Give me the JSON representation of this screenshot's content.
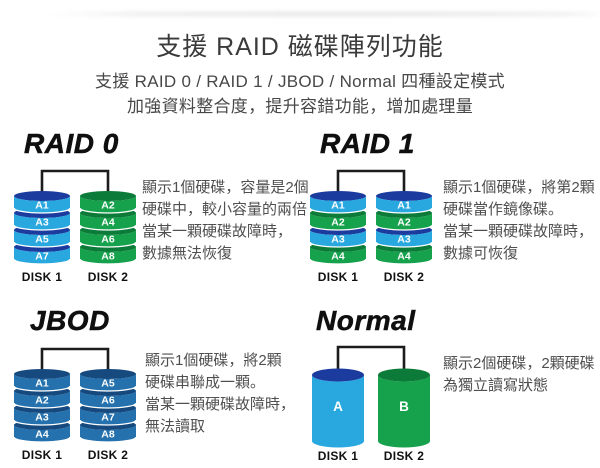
{
  "header": {
    "title": "支援 RAID 磁碟陣列功能",
    "subtitle1": "支援 RAID 0 / RAID 1 / JBOD / Normal 四種設定模式",
    "subtitle2": "加強資料整合度，提升容錯功能，增加處理量"
  },
  "colors": {
    "cyan": "#29a8e0",
    "navy": "#1c3b9e",
    "green": "#16a24c",
    "green_dark": "#0c7a38",
    "steel": "#2471ae",
    "steel_dark": "#164a7e",
    "connector": "#1c1c1c",
    "platter_text": "#ffffff",
    "caption_text": "#111111"
  },
  "sections": [
    {
      "id": "raid0",
      "title": "RAID 0",
      "description": [
        "顯示1個硬碟，容量是2個",
        "硬碟中，較小容量的兩倍",
        "當某一顆硬碟故障時，",
        "數據無法恢復"
      ],
      "disk_type": "stack",
      "disks": [
        {
          "caption": "DISK 1",
          "platters": [
            {
              "text": "A1",
              "body": "cyan",
              "rim": "navy"
            },
            {
              "text": "A3",
              "body": "cyan",
              "rim": "navy"
            },
            {
              "text": "A5",
              "body": "cyan",
              "rim": "navy"
            },
            {
              "text": "A7",
              "body": "cyan",
              "rim": "navy"
            }
          ]
        },
        {
          "caption": "DISK 2",
          "platters": [
            {
              "text": "A2",
              "body": "green",
              "rim": "green_dark"
            },
            {
              "text": "A4",
              "body": "green",
              "rim": "green_dark"
            },
            {
              "text": "A6",
              "body": "green",
              "rim": "green_dark"
            },
            {
              "text": "A8",
              "body": "green",
              "rim": "green_dark"
            }
          ]
        }
      ]
    },
    {
      "id": "raid1",
      "title": "RAID 1",
      "description": [
        "顯示1個硬碟，將第2顆",
        "硬碟當作鏡像碟。",
        "當某一顆硬碟故障時，",
        "數據可恢復"
      ],
      "disk_type": "stack",
      "disks": [
        {
          "caption": "DISK 1",
          "platters": [
            {
              "text": "A1",
              "body": "cyan",
              "rim": "navy"
            },
            {
              "text": "A2",
              "body": "green",
              "rim": "green_dark"
            },
            {
              "text": "A3",
              "body": "cyan",
              "rim": "navy"
            },
            {
              "text": "A4",
              "body": "green",
              "rim": "green_dark"
            }
          ]
        },
        {
          "caption": "DISK 2",
          "platters": [
            {
              "text": "A1",
              "body": "cyan",
              "rim": "navy"
            },
            {
              "text": "A2",
              "body": "green",
              "rim": "green_dark"
            },
            {
              "text": "A3",
              "body": "cyan",
              "rim": "navy"
            },
            {
              "text": "A4",
              "body": "green",
              "rim": "green_dark"
            }
          ]
        }
      ]
    },
    {
      "id": "jbod",
      "title": "JBOD",
      "description": [
        "顯示1個硬碟，將2顆",
        "硬碟串聯成一顆。",
        "當某一顆硬碟故障時，",
        "無法讀取"
      ],
      "disk_type": "stack",
      "disks": [
        {
          "caption": "DISK 1",
          "platters": [
            {
              "text": "A1",
              "body": "steel",
              "rim": "steel_dark"
            },
            {
              "text": "A2",
              "body": "steel",
              "rim": "steel_dark"
            },
            {
              "text": "A3",
              "body": "steel",
              "rim": "steel_dark"
            },
            {
              "text": "A4",
              "body": "steel",
              "rim": "steel_dark"
            }
          ]
        },
        {
          "caption": "DISK 2",
          "platters": [
            {
              "text": "A5",
              "body": "steel",
              "rim": "steel_dark"
            },
            {
              "text": "A6",
              "body": "steel",
              "rim": "steel_dark"
            },
            {
              "text": "A7",
              "body": "steel",
              "rim": "steel_dark"
            },
            {
              "text": "A8",
              "body": "steel",
              "rim": "steel_dark"
            }
          ]
        }
      ]
    },
    {
      "id": "normal",
      "title": "Normal",
      "description": [
        "顯示2個硬碟，2顆硬碟",
        "為獨立讀寫狀態"
      ],
      "disk_type": "solid",
      "disks": [
        {
          "caption": "DISK 1",
          "text": "A",
          "body": "cyan",
          "rim": "navy"
        },
        {
          "caption": "DISK 2",
          "text": "B",
          "body": "green",
          "rim": "green_dark"
        }
      ]
    }
  ]
}
